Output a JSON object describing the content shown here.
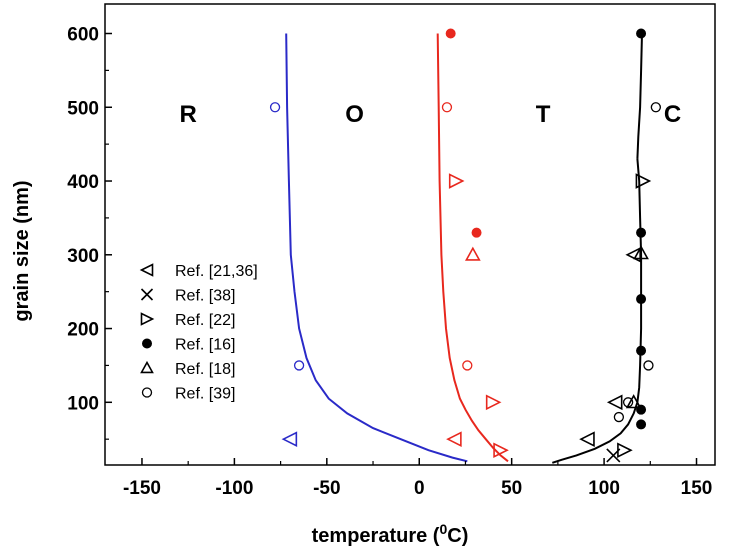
{
  "chart_data": {
    "type": "scatter",
    "title": "",
    "xlabel": "temperature (",
    "xlabel_sup": "0",
    "xlabel_tail": "C)",
    "ylabel": "grain size (nm)",
    "xlim": [
      -170,
      160
    ],
    "ylim": [
      15,
      640
    ],
    "xticks": [
      -150,
      -100,
      -50,
      0,
      50,
      100,
      150
    ],
    "yticks": [
      100,
      200,
      300,
      400,
      500,
      600
    ],
    "grid": false,
    "legend_position": "middle-left",
    "phase_labels": [
      {
        "text": "R",
        "x": -125,
        "y": 492
      },
      {
        "text": "O",
        "x": -35,
        "y": 492
      },
      {
        "text": "T",
        "x": 67,
        "y": 492
      },
      {
        "text": "C",
        "x": 137,
        "y": 492
      }
    ],
    "colors": {
      "blue": "#2a2ac8",
      "red": "#e8281e",
      "black": "#000000",
      "axis": "#000000"
    },
    "curves": [
      {
        "color": "blue",
        "points": [
          [
            -72,
            600
          ],
          [
            -71.5,
            500
          ],
          [
            -70.5,
            400
          ],
          [
            -69.5,
            300
          ],
          [
            -67.5,
            250
          ],
          [
            -65,
            200
          ],
          [
            -61,
            160
          ],
          [
            -56,
            130
          ],
          [
            -49,
            105
          ],
          [
            -39,
            85
          ],
          [
            -25,
            65
          ],
          [
            -10,
            50
          ],
          [
            5,
            35
          ],
          [
            18,
            25
          ],
          [
            26,
            20
          ]
        ]
      },
      {
        "color": "red",
        "points": [
          [
            10,
            600
          ],
          [
            10.5,
            500
          ],
          [
            11,
            400
          ],
          [
            12,
            300
          ],
          [
            13,
            250
          ],
          [
            14.5,
            200
          ],
          [
            16.5,
            160
          ],
          [
            19,
            130
          ],
          [
            22,
            105
          ],
          [
            25,
            90
          ],
          [
            28.5,
            75
          ],
          [
            32,
            62
          ],
          [
            36,
            50
          ],
          [
            40,
            38
          ],
          [
            44,
            28
          ],
          [
            48,
            20
          ]
        ]
      },
      {
        "color": "black",
        "points": [
          [
            118,
            430
          ],
          [
            119,
            400
          ],
          [
            119.5,
            350
          ],
          [
            120,
            300
          ],
          [
            120,
            200
          ],
          [
            119.5,
            150
          ],
          [
            119,
            120
          ],
          [
            118,
            100
          ],
          [
            116,
            85
          ],
          [
            113,
            70
          ],
          [
            109,
            58
          ],
          [
            103,
            47
          ],
          [
            95,
            37
          ],
          [
            85,
            28
          ],
          [
            77,
            22
          ],
          [
            72,
            18
          ]
        ]
      },
      {
        "color": "black",
        "points": [
          [
            118,
            430
          ],
          [
            118.5,
            460
          ],
          [
            119.5,
            500
          ],
          [
            120,
            550
          ],
          [
            120.5,
            600
          ]
        ]
      }
    ],
    "series": [
      {
        "name": "Ref. [21,36]",
        "marker": "triangle-left",
        "points": [
          {
            "x": -70,
            "y": 50,
            "color": "blue"
          },
          {
            "x": 19,
            "y": 50,
            "color": "red"
          },
          {
            "x": 91,
            "y": 50,
            "color": "black"
          },
          {
            "x": 106,
            "y": 100,
            "color": "black"
          },
          {
            "x": 116,
            "y": 300,
            "color": "black"
          }
        ]
      },
      {
        "name": "Ref. [38]",
        "marker": "cross",
        "points": [
          {
            "x": 105,
            "y": 28,
            "color": "black"
          }
        ]
      },
      {
        "name": "Ref. [22]",
        "marker": "triangle-right",
        "points": [
          {
            "x": 20,
            "y": 400,
            "color": "red"
          },
          {
            "x": 40,
            "y": 100,
            "color": "red"
          },
          {
            "x": 44,
            "y": 35,
            "color": "red"
          },
          {
            "x": 111,
            "y": 35,
            "color": "black"
          },
          {
            "x": 121,
            "y": 400,
            "color": "black"
          }
        ]
      },
      {
        "name": "Ref. [16]",
        "marker": "filled-circle",
        "points": [
          {
            "x": 17,
            "y": 600,
            "color": "red"
          },
          {
            "x": 31,
            "y": 330,
            "color": "red"
          },
          {
            "x": 120,
            "y": 600,
            "color": "black"
          },
          {
            "x": 120,
            "y": 330,
            "color": "black"
          },
          {
            "x": 120,
            "y": 240,
            "color": "black"
          },
          {
            "x": 120,
            "y": 170,
            "color": "black"
          },
          {
            "x": 120,
            "y": 90,
            "color": "black"
          },
          {
            "x": 120,
            "y": 70,
            "color": "black"
          }
        ]
      },
      {
        "name": "Ref. [18]",
        "marker": "triangle-up",
        "points": [
          {
            "x": 29,
            "y": 300,
            "color": "red"
          },
          {
            "x": 120,
            "y": 302,
            "color": "black"
          },
          {
            "x": 116,
            "y": 100,
            "color": "black"
          }
        ]
      },
      {
        "name": "Ref. [39]",
        "marker": "open-circle",
        "points": [
          {
            "x": -78,
            "y": 500,
            "color": "blue"
          },
          {
            "x": -65,
            "y": 150,
            "color": "blue"
          },
          {
            "x": 15,
            "y": 500,
            "color": "red"
          },
          {
            "x": 26,
            "y": 150,
            "color": "red"
          },
          {
            "x": 128,
            "y": 500,
            "color": "black"
          },
          {
            "x": 124,
            "y": 150,
            "color": "black"
          },
          {
            "x": 113,
            "y": 100,
            "color": "black"
          },
          {
            "x": 108,
            "y": 80,
            "color": "black"
          }
        ]
      }
    ]
  }
}
